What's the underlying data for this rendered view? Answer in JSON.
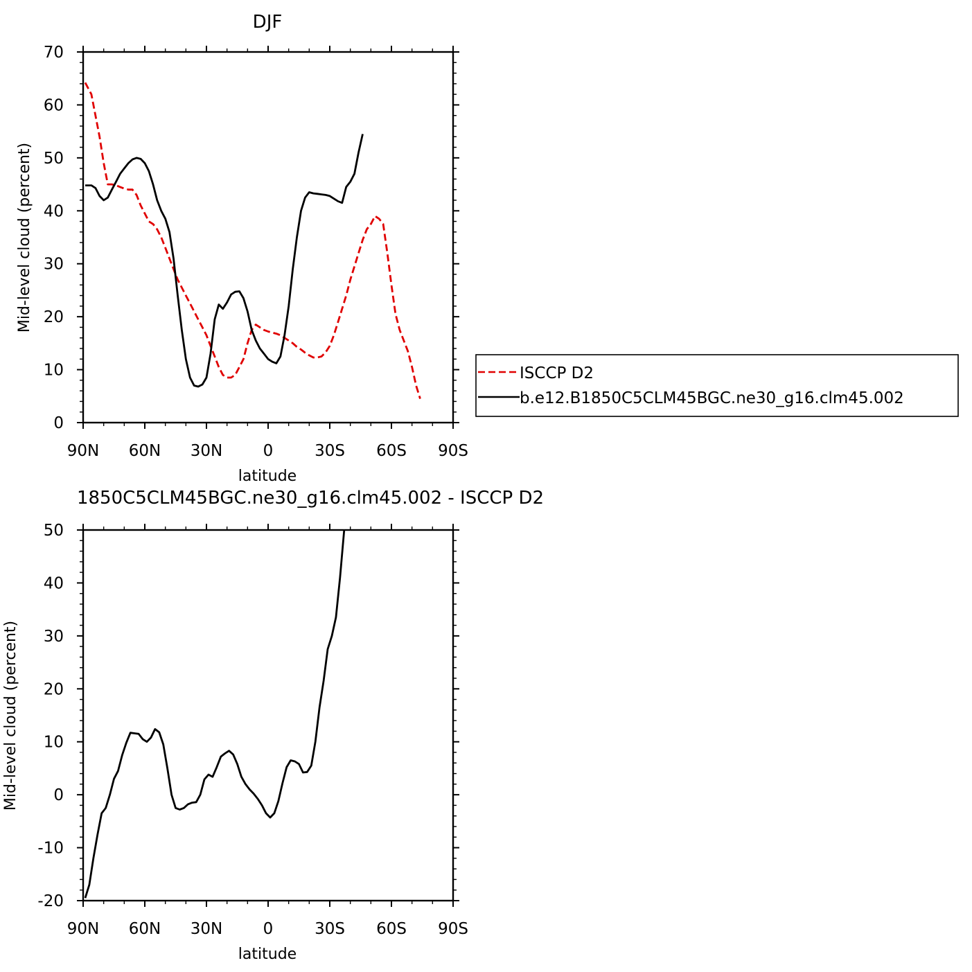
{
  "chart_data": [
    {
      "type": "line",
      "title": "DJF",
      "xlabel": "latitude",
      "ylabel": "Mid-level cloud (percent)",
      "xlim": [
        90,
        -90
      ],
      "ylim": [
        0,
        70
      ],
      "yticks": [
        0,
        10,
        20,
        30,
        40,
        50,
        60,
        70
      ],
      "xticks": [
        {
          "value": 90,
          "label": "90N"
        },
        {
          "value": 60,
          "label": "60N"
        },
        {
          "value": 30,
          "label": "30N"
        },
        {
          "value": 0,
          "label": "0"
        },
        {
          "value": -30,
          "label": "30S"
        },
        {
          "value": -60,
          "label": "60S"
        },
        {
          "value": -90,
          "label": "90S"
        }
      ],
      "legend_position": "right",
      "series": [
        {
          "name": "ISCCP D2",
          "color": "#e00000",
          "dash": "dashed",
          "x": [
            89,
            86,
            84,
            82,
            80,
            78,
            76,
            74,
            72,
            70,
            68,
            66,
            64,
            62,
            60,
            58,
            56,
            54,
            52,
            50,
            48,
            46,
            44,
            42,
            40,
            38,
            36,
            34,
            32,
            30,
            28,
            26,
            24,
            22,
            20,
            18,
            16,
            14,
            12,
            10,
            8,
            6,
            4,
            2,
            0,
            -2,
            -4,
            -6,
            -8,
            -10,
            -12,
            -14,
            -16,
            -18,
            -20,
            -22,
            -24,
            -26,
            -28,
            -30,
            -32,
            -34,
            -36,
            -38,
            -40,
            -42,
            -44,
            -46,
            -48,
            -50,
            -52,
            -54,
            -56,
            -58,
            -60,
            -62,
            -64,
            -66,
            -68,
            -70,
            -72,
            -74,
            -76,
            -78,
            -80,
            -82,
            -84,
            -86,
            -88
          ],
          "y": [
            64.2,
            62,
            58,
            54,
            49,
            45,
            45,
            44.8,
            44.5,
            44.2,
            44,
            44,
            43,
            41,
            39.5,
            38,
            37.5,
            36.5,
            35,
            33,
            31,
            29,
            27,
            25.5,
            24,
            22.5,
            21,
            19.5,
            18,
            16.5,
            14.5,
            12.5,
            10.5,
            9,
            8.5,
            8.5,
            9,
            10.5,
            12,
            15,
            17.5,
            18.5,
            18,
            17.5,
            17.2,
            17,
            16.8,
            16.5,
            16,
            15.5,
            15,
            14.3,
            13.8,
            13.2,
            12.7,
            12.3,
            12.3,
            12.5,
            13.3,
            14.5,
            16.5,
            19,
            21.5,
            24,
            27,
            29.5,
            32,
            34.5,
            36.5,
            37.5,
            39,
            38.5,
            37.5,
            32,
            26,
            20.5,
            17.5,
            15.5,
            13.5,
            10.5,
            7,
            4.5,
            null,
            null,
            null,
            null,
            null,
            null,
            null
          ]
        },
        {
          "name": "b.e12.B1850C5CLM45BGC.ne30_g16.clm45.002",
          "color": "#000000",
          "dash": "solid",
          "x": [
            89,
            86,
            84,
            82,
            80,
            78,
            76,
            74,
            72,
            70,
            68,
            66,
            64,
            62,
            60,
            58,
            56,
            54,
            52,
            50,
            48,
            46,
            44,
            42,
            40,
            38,
            36,
            34,
            32,
            30,
            28,
            26,
            24,
            22,
            20,
            18,
            16,
            14,
            12,
            10,
            8,
            6,
            4,
            2,
            0,
            -2,
            -4,
            -6,
            -8,
            -10,
            -12,
            -14,
            -16,
            -18,
            -20,
            -22,
            -24,
            -26,
            -28,
            -30,
            -32,
            -34,
            -36,
            -38,
            -40,
            -42,
            -44,
            -46,
            -48,
            -50,
            -52,
            -54,
            -56,
            -58,
            -60,
            -62,
            -64,
            -66,
            -68,
            -70,
            -72,
            -74,
            -76,
            -78,
            -80,
            -82,
            -84,
            -86,
            -88
          ],
          "y": [
            44.8,
            44.8,
            44.3,
            42.8,
            42,
            42.5,
            44,
            45.5,
            47,
            48,
            49,
            49.7,
            50,
            49.8,
            49,
            47.5,
            45,
            42,
            40,
            38.5,
            36,
            31,
            24,
            17.5,
            12,
            8.5,
            7,
            6.8,
            7.2,
            8.5,
            13,
            19.5,
            22.3,
            21.5,
            22.7,
            24.2,
            24.7,
            24.8,
            23.5,
            21,
            17.5,
            15.5,
            14,
            13,
            12,
            11.5,
            11.2,
            12.5,
            16.5,
            22,
            29,
            35,
            40,
            42.5,
            43.5,
            43.3,
            43.2,
            43.1,
            43,
            42.8,
            42.3,
            41.8,
            41.5,
            44.5,
            45.5,
            47,
            51,
            54.5,
            null,
            null,
            null,
            null,
            null,
            null,
            null,
            null,
            null,
            null,
            null,
            null,
            null,
            null,
            null,
            null,
            null,
            null,
            null,
            null,
            null
          ]
        }
      ]
    },
    {
      "type": "line",
      "title": "1850C5CLM45BGC.ne30_g16.clm45.002 - ISCCP D2",
      "xlabel": "latitude",
      "ylabel": "Mid-level cloud (percent)",
      "xlim": [
        90,
        -90
      ],
      "ylim": [
        -20,
        50
      ],
      "yticks": [
        -20,
        -10,
        0,
        10,
        20,
        30,
        40,
        50
      ],
      "xticks": [
        {
          "value": 90,
          "label": "90N"
        },
        {
          "value": 60,
          "label": "60N"
        },
        {
          "value": 30,
          "label": "30N"
        },
        {
          "value": 0,
          "label": "0"
        },
        {
          "value": -30,
          "label": "30S"
        },
        {
          "value": -60,
          "label": "60S"
        },
        {
          "value": -90,
          "label": "90S"
        }
      ],
      "series": [
        {
          "name": "",
          "color": "#000000",
          "dash": "solid",
          "x": [
            89,
            87,
            85,
            83,
            81,
            79,
            77,
            75,
            73,
            71,
            69,
            67,
            65,
            63,
            61,
            59,
            57,
            55,
            53,
            51,
            49,
            47,
            45,
            43,
            41,
            39,
            37,
            35,
            33,
            31,
            29,
            27,
            25,
            23,
            21,
            19,
            17,
            15,
            13,
            11,
            9,
            7,
            5,
            3,
            1,
            -1,
            -3,
            -5,
            -7,
            -9,
            -11,
            -13,
            -15,
            -17,
            -19,
            -21,
            -23,
            -25,
            -27,
            -29,
            -31,
            -33,
            -35,
            -37,
            -39,
            -41,
            -43,
            -45,
            -47,
            -49,
            -51,
            -53,
            -55,
            -57,
            -59,
            -61,
            -63,
            -65,
            -67,
            -69,
            -71,
            -73,
            -75,
            -77,
            -79,
            -81,
            -83,
            -85,
            -87,
            -89
          ],
          "y": [
            -19.5,
            -17,
            -12,
            -7.5,
            -3.5,
            -2.5,
            0,
            3,
            4.5,
            7.5,
            9.8,
            11.7,
            11.6,
            11.5,
            10.5,
            10,
            10.8,
            12.4,
            11.8,
            9.5,
            5,
            0,
            -2.5,
            -2.8,
            -2.5,
            -1.8,
            -1.5,
            -1.4,
            0,
            2.9,
            3.8,
            3.4,
            5.2,
            7.2,
            7.8,
            8.3,
            7.6,
            5.8,
            3.4,
            2,
            1,
            0.2,
            -0.8,
            -2,
            -3.5,
            -4.3,
            -3.5,
            -1.2,
            2.2,
            5.2,
            6.5,
            6.3,
            5.8,
            4.2,
            4.3,
            5.5,
            10,
            16.5,
            21.5,
            27.5,
            30,
            33.5,
            41,
            50,
            null,
            null,
            null,
            null,
            null,
            null,
            null,
            null,
            null,
            null,
            null,
            null,
            null,
            null,
            null,
            null,
            null,
            null,
            null,
            null,
            null,
            null,
            null,
            null,
            null,
            null
          ]
        }
      ]
    }
  ]
}
